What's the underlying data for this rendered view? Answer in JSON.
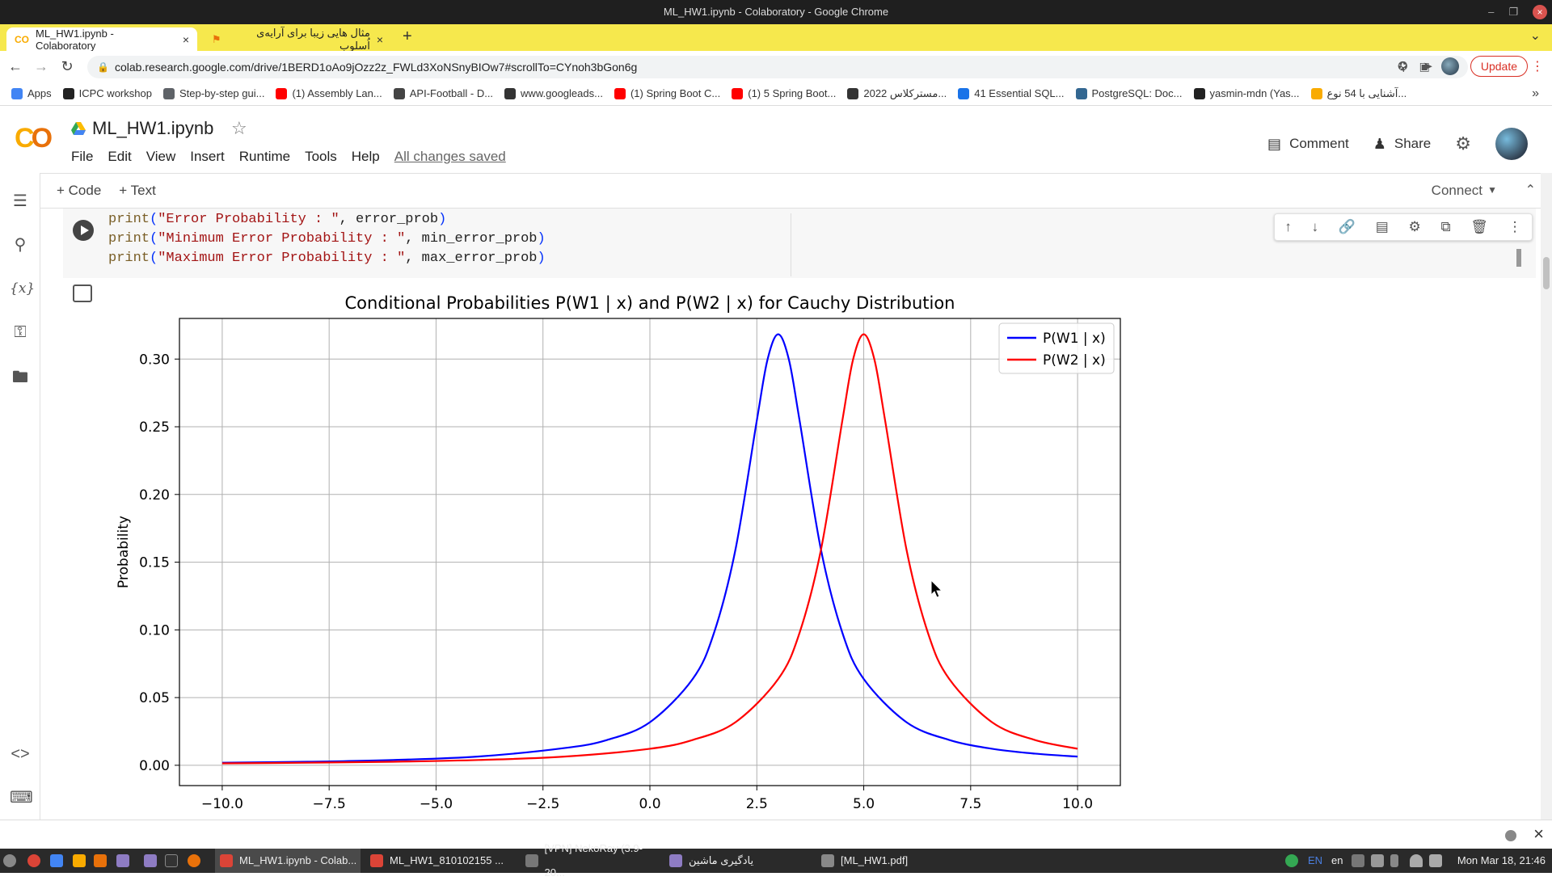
{
  "window_title": "ML_HW1.ipynb - Colaboratory - Google Chrome",
  "tabs": [
    {
      "label": "ML_HW1.ipynb - Colaboratory",
      "close": "×"
    },
    {
      "label": "مثال هایی زیبا برای آرایه‌ی اُسلوب",
      "close": "×"
    }
  ],
  "new_tab": "+",
  "address": {
    "url": "colab.research.google.com/drive/1BERD1oAo9jOzz2z_FWLd3XoNSnyBIOw7#scrollTo=CYnoh3bGon6g"
  },
  "update_label": "Update",
  "bookmarks": [
    {
      "label": "Apps",
      "color": "#4285f4"
    },
    {
      "label": "ICPC workshop",
      "color": "#222222"
    },
    {
      "label": "Step-by-step gui...",
      "color": "#5f6368"
    },
    {
      "label": "(1) Assembly Lan...",
      "color": "#ff0000"
    },
    {
      "label": "API-Football - D...",
      "color": "#444444"
    },
    {
      "label": "www.googleads...",
      "color": "#333333"
    },
    {
      "label": "(1) Spring Boot C...",
      "color": "#ff0000"
    },
    {
      "label": "(1) 5 Spring Boot...",
      "color": "#ff0000"
    },
    {
      "label": "مسترکلاس 2022...",
      "color": "#333333"
    },
    {
      "label": "41 Essential SQL...",
      "color": "#1a73e8"
    },
    {
      "label": "PostgreSQL: Doc...",
      "color": "#336791"
    },
    {
      "label": "yasmin-mdn (Yas...",
      "color": "#222222"
    },
    {
      "label": "آشنایی با 54 نوع...",
      "color": "#f9ab00"
    }
  ],
  "colab": {
    "title": "ML_HW1.ipynb",
    "menu": [
      "File",
      "Edit",
      "View",
      "Insert",
      "Runtime",
      "Tools",
      "Help"
    ],
    "saved_status": "All changes saved",
    "comment_label": "Comment",
    "share_label": "Share",
    "add_code": "+ Code",
    "add_text": "+ Text",
    "connect_label": "Connect"
  },
  "code_lines": [
    {
      "fn": "print",
      "open": "(",
      "str": "\"Error Probability : \"",
      "rest": ", error_prob",
      "close": ")"
    },
    {
      "fn": "print",
      "open": "(",
      "str": "\"Minimum Error Probability : \"",
      "rest": ", min_error_prob",
      "close": ")"
    },
    {
      "fn": "print",
      "open": "(",
      "str": "\"Maximum Error Probability : \"",
      "rest": ", max_error_prob",
      "close": ")"
    }
  ],
  "chart_data": {
    "type": "line",
    "title": "Conditional Probabilities P(W1 | x) and P(W2 | x) for Cauchy Distribution",
    "xlabel": "x",
    "ylabel": "Probability",
    "xlim": [
      -11,
      11
    ],
    "ylim": [
      -0.015,
      0.33
    ],
    "xticks": [
      -10.0,
      -7.5,
      -5.0,
      -2.5,
      0.0,
      2.5,
      5.0,
      7.5,
      10.0
    ],
    "xtick_labels": [
      "−10.0",
      "−7.5",
      "−5.0",
      "−2.5",
      "0.0",
      "2.5",
      "5.0",
      "7.5",
      "10.0"
    ],
    "yticks": [
      0.0,
      0.05,
      0.1,
      0.15,
      0.2,
      0.25,
      0.3
    ],
    "ytick_labels": [
      "0.00",
      "0.05",
      "0.10",
      "0.15",
      "0.20",
      "0.25",
      "0.30"
    ],
    "grid": true,
    "legend": "upper right",
    "series": [
      {
        "name": "P(W1 | x)",
        "color": "#0000ff",
        "x": [
          -10,
          -8,
          -6,
          -4,
          -2,
          -1,
          0,
          1,
          1.5,
          2,
          2.5,
          2.75,
          3,
          3.25,
          3.5,
          4,
          4.5,
          5,
          6,
          7,
          8,
          9,
          10
        ],
        "y": [
          0.0019,
          0.0026,
          0.0039,
          0.0065,
          0.0127,
          0.0187,
          0.0318,
          0.0637,
          0.0979,
          0.1592,
          0.2546,
          0.2996,
          0.3183,
          0.2996,
          0.2546,
          0.1592,
          0.0979,
          0.0637,
          0.0318,
          0.0187,
          0.0122,
          0.0086,
          0.0064
        ]
      },
      {
        "name": "P(W2 | x)",
        "color": "#ff0000",
        "x": [
          -10,
          -8,
          -6,
          -4,
          -2,
          0,
          1,
          2,
          3,
          3.5,
          4,
          4.5,
          4.75,
          5,
          5.25,
          5.5,
          6,
          6.5,
          7,
          8,
          9,
          10
        ],
        "y": [
          0.0014,
          0.0019,
          0.0026,
          0.0039,
          0.0064,
          0.0122,
          0.0187,
          0.0318,
          0.0637,
          0.0979,
          0.1592,
          0.2546,
          0.2996,
          0.3183,
          0.2996,
          0.2546,
          0.1592,
          0.0979,
          0.0637,
          0.0318,
          0.0187,
          0.0122
        ]
      }
    ]
  },
  "taskbar": {
    "items": [
      {
        "label": "ML_HW1.ipynb - Colab...",
        "active": true,
        "color": "#db4437"
      },
      {
        "label": "ML_HW1_810102155 ...",
        "active": false,
        "color": "#db4437"
      },
      {
        "label": "[VPN] NekoRay (3.9-20...",
        "active": false,
        "color": "#777777"
      },
      {
        "label": "یادگیری ماشین",
        "active": false,
        "color": "#8e7cc3"
      },
      {
        "label": "[ML_HW1.pdf]",
        "active": false,
        "color": "#888888"
      }
    ],
    "lang": "EN",
    "locale": "en",
    "clock": "Mon Mar 18, 21:46"
  }
}
